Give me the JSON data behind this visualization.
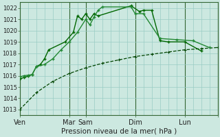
{
  "xlabel": "Pression niveau de la mer( hPa )",
  "bg_color": "#cce8e0",
  "grid_color_major": "#99ccc4",
  "grid_color_minor": "#b8ddd8",
  "line_color1": "#006600",
  "line_color2": "#228833",
  "line_color3": "#004400",
  "ylim": [
    1012.5,
    1022.5
  ],
  "yticks": [
    1013,
    1014,
    1015,
    1016,
    1017,
    1018,
    1019,
    1020,
    1021,
    1022
  ],
  "xlim": [
    0,
    24
  ],
  "day_ticks": [
    0,
    6,
    8,
    14,
    20,
    24
  ],
  "day_labels": [
    "Ven",
    "Mar",
    "Sam",
    "Dim",
    "Lun",
    ""
  ],
  "line1_x": [
    0,
    0.5,
    1,
    1.5,
    2,
    2.5,
    3,
    3.5,
    5.5,
    6.5,
    7,
    7.5,
    8,
    8.5,
    9,
    9.5,
    13.5,
    14.5,
    15,
    16,
    17,
    18,
    20,
    22
  ],
  "line1_y": [
    1015.7,
    1015.85,
    1015.95,
    1016.1,
    1016.8,
    1017.0,
    1017.5,
    1018.3,
    1019.0,
    1019.85,
    1021.3,
    1021.0,
    1021.5,
    1021.0,
    1021.5,
    1021.3,
    1022.2,
    1021.7,
    1021.8,
    1021.8,
    1019.1,
    1019.0,
    1019.0,
    1018.2
  ],
  "line2_x": [
    0,
    0.5,
    1,
    1.5,
    2,
    3,
    4,
    5,
    6,
    7,
    8,
    8.5,
    9,
    9.5,
    10,
    13.5,
    14,
    15,
    17,
    19,
    21,
    23
  ],
  "line2_y": [
    1015.9,
    1016.0,
    1016.05,
    1016.1,
    1016.8,
    1017.0,
    1017.5,
    1018.3,
    1019.0,
    1019.85,
    1021.0,
    1020.5,
    1021.2,
    1021.8,
    1022.1,
    1022.1,
    1021.5,
    1021.5,
    1019.3,
    1019.2,
    1019.1,
    1018.5
  ],
  "line3_x": [
    0,
    2,
    4,
    6,
    8,
    10,
    12,
    14,
    16,
    18,
    20,
    22,
    24
  ],
  "line3_y": [
    1013.0,
    1014.5,
    1015.5,
    1016.2,
    1016.7,
    1017.1,
    1017.4,
    1017.7,
    1017.9,
    1018.1,
    1018.3,
    1018.4,
    1018.5
  ]
}
